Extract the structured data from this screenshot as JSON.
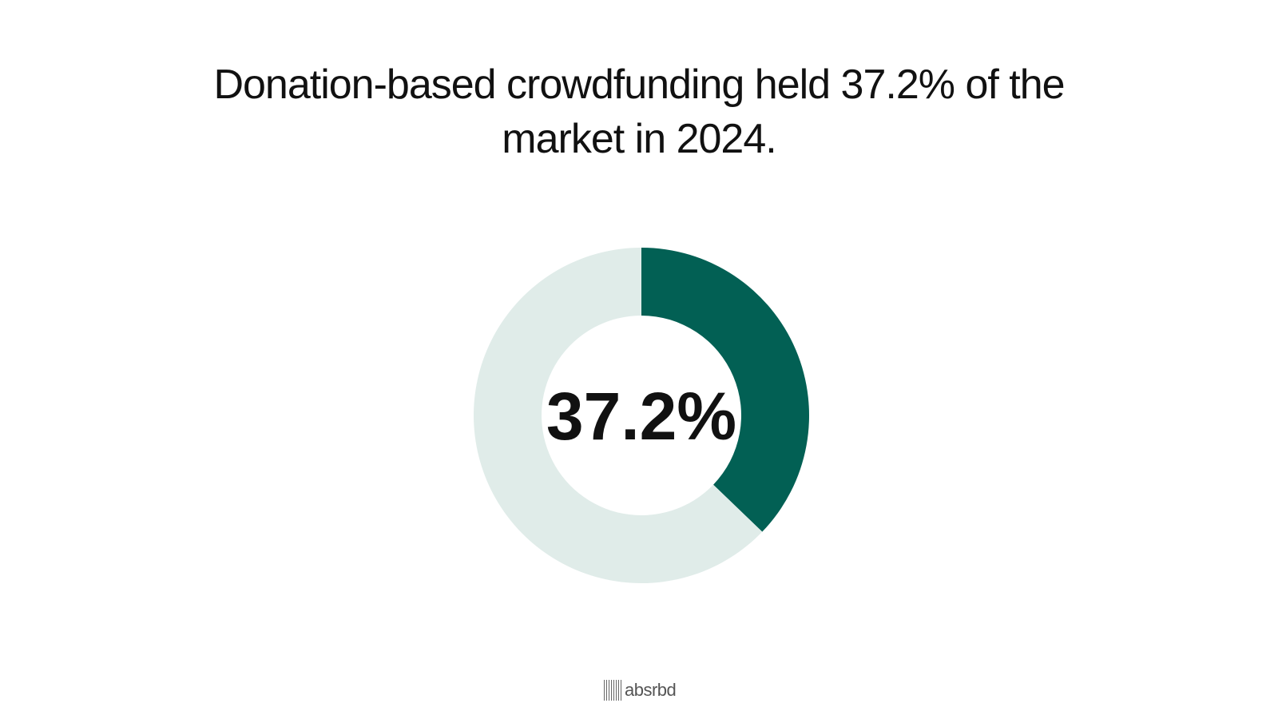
{
  "headline": "Donation-based crowdfunding held 37.2% of the market in 2024.",
  "center_label": "37.2%",
  "brand": {
    "name": "absrbd",
    "logo_icon": "barcode-lines-icon"
  },
  "colors": {
    "highlight": "#026054",
    "remainder": "#E0ECE9",
    "text": "#111111"
  },
  "chart_data": {
    "type": "pie",
    "variant": "donut",
    "slices": [
      {
        "value": 37.2
      },
      {
        "value": 62.8
      }
    ],
    "unit": "%",
    "start_angle": "top",
    "direction": "clockwise"
  }
}
